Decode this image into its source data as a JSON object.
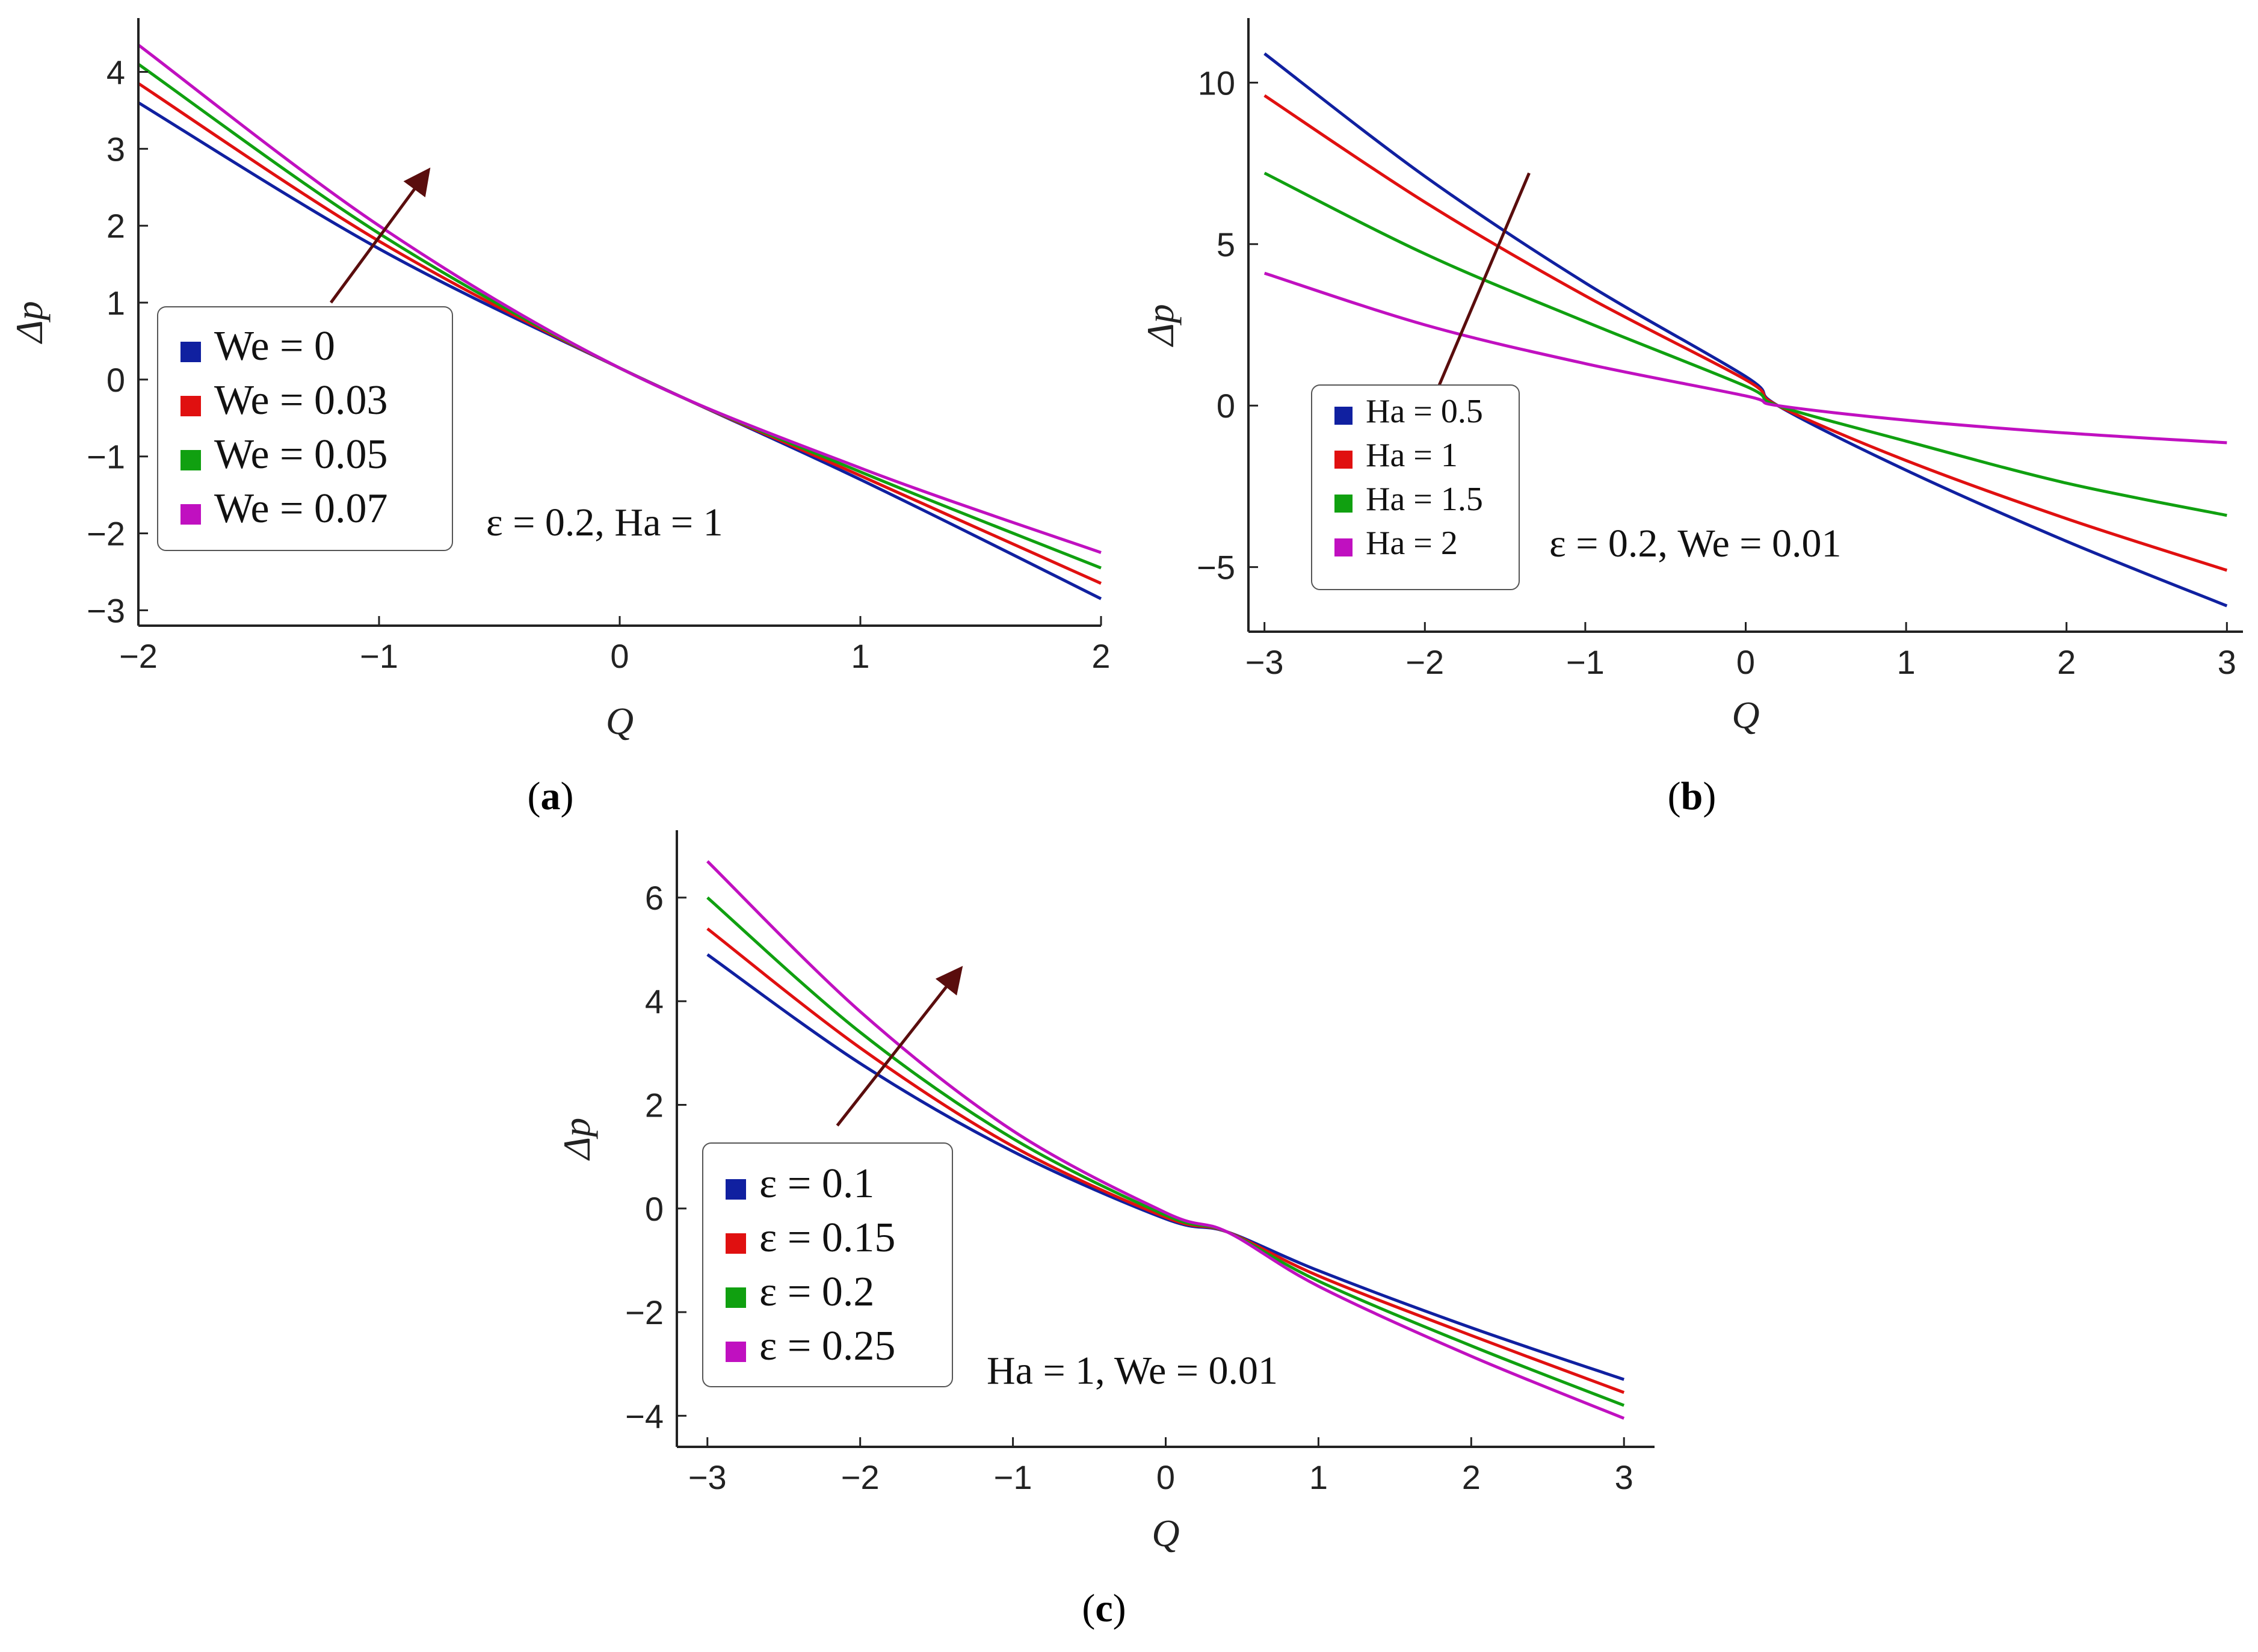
{
  "chart_data": [
    {
      "type": "line",
      "panel_label": "(a)",
      "label_letter": "a",
      "xlabel": "Q",
      "ylabel": "Δp",
      "xlim": [
        -2,
        2
      ],
      "ylim": [
        -3.2,
        4.7
      ],
      "x_ticks": [
        -2,
        -1,
        0,
        1,
        2
      ],
      "y_ticks": [
        -3,
        -2,
        -1,
        0,
        1,
        2,
        3,
        4
      ],
      "x_tick_labels": [
        "−2",
        "−1",
        "0",
        "1",
        "2"
      ],
      "y_tick_labels": [
        "−3",
        "−2",
        "−1",
        "0",
        "1",
        "2",
        "3",
        "4"
      ],
      "legend_position": "left",
      "annotation": "ε = 0.2, Ha = 1",
      "arrow": {
        "from": [
          -1.2,
          1.0
        ],
        "to": [
          -0.8,
          2.7
        ],
        "meaning": "increasing We"
      },
      "series": [
        {
          "name": "We = 0",
          "color": "#1020a0",
          "x": [
            -2,
            -1,
            0,
            1,
            2
          ],
          "y": [
            3.6,
            1.7,
            0.15,
            -1.3,
            -2.85
          ]
        },
        {
          "name": "We = 0.03",
          "color": "#e01010",
          "x": [
            -2,
            -1,
            0,
            1,
            2
          ],
          "y": [
            3.85,
            1.8,
            0.15,
            -1.25,
            -2.65
          ]
        },
        {
          "name": "We = 0.05",
          "color": "#10a010",
          "x": [
            -2,
            -1,
            0,
            1,
            2
          ],
          "y": [
            4.1,
            1.9,
            0.15,
            -1.2,
            -2.45
          ]
        },
        {
          "name": "We = 0.07",
          "color": "#c010c0",
          "x": [
            -2,
            -1,
            0,
            1,
            2
          ],
          "y": [
            4.35,
            2.0,
            0.15,
            -1.15,
            -2.25
          ]
        }
      ]
    },
    {
      "type": "line",
      "panel_label": "(b)",
      "label_letter": "b",
      "xlabel": "Q",
      "ylabel": "Δp",
      "xlim": [
        -3.1,
        3.1
      ],
      "ylim": [
        -7,
        12
      ],
      "x_ticks": [
        -3,
        -2,
        -1,
        0,
        1,
        2,
        3
      ],
      "y_ticks": [
        -5,
        0,
        5,
        10
      ],
      "x_tick_labels": [
        "−3",
        "−2",
        "−1",
        "0",
        "1",
        "2",
        "3"
      ],
      "y_tick_labels": [
        "−5",
        "0",
        "5",
        "10"
      ],
      "legend_position": "bottom-left",
      "annotation": "ε = 0.2, We = 0.01",
      "arrow": {
        "from": [
          -1.35,
          7.2
        ],
        "to": [
          -2.05,
          -1.0
        ],
        "meaning": "increasing Ha"
      },
      "series": [
        {
          "name": "Ha = 0.5",
          "color": "#1020a0",
          "x": [
            -3,
            -2,
            -1,
            0,
            0.2,
            1,
            2,
            3
          ],
          "y": [
            10.9,
            7.1,
            3.8,
            0.9,
            0.0,
            -2.0,
            -4.2,
            -6.2
          ]
        },
        {
          "name": "Ha = 1",
          "color": "#e01010",
          "x": [
            -3,
            -2,
            -1,
            0,
            0.2,
            1,
            2,
            3
          ],
          "y": [
            9.6,
            6.3,
            3.4,
            0.8,
            0.0,
            -1.7,
            -3.5,
            -5.1
          ]
        },
        {
          "name": "Ha = 1.5",
          "color": "#10a010",
          "x": [
            -3,
            -2,
            -1,
            0,
            0.2,
            1,
            2,
            3
          ],
          "y": [
            7.2,
            4.7,
            2.6,
            0.6,
            0.0,
            -1.1,
            -2.4,
            -3.4
          ]
        },
        {
          "name": "Ha = 2",
          "color": "#c010c0",
          "x": [
            -3,
            -2,
            -1,
            0,
            0.2,
            1,
            2,
            3
          ],
          "y": [
            4.1,
            2.5,
            1.3,
            0.3,
            0.0,
            -0.45,
            -0.85,
            -1.15
          ]
        }
      ]
    },
    {
      "type": "line",
      "panel_label": "(c)",
      "label_letter": "c",
      "xlabel": "Q",
      "ylabel": "Δp",
      "xlim": [
        -3.2,
        3.2
      ],
      "ylim": [
        -4.6,
        7.3
      ],
      "x_ticks": [
        -3,
        -2,
        -1,
        0,
        1,
        2,
        3
      ],
      "y_ticks": [
        -4,
        -2,
        0,
        2,
        4,
        6
      ],
      "x_tick_labels": [
        "−3",
        "−2",
        "−1",
        "0",
        "1",
        "2",
        "3"
      ],
      "y_tick_labels": [
        "−4",
        "−2",
        "0",
        "2",
        "4",
        "6"
      ],
      "legend_position": "left",
      "annotation": "Ha = 1, We = 0.01",
      "arrow": {
        "from": [
          -2.15,
          1.6
        ],
        "to": [
          -1.35,
          4.6
        ],
        "meaning": "increasing ε"
      },
      "series": [
        {
          "name": "ε = 0.1",
          "color": "#1020a0",
          "x": [
            -3,
            -2,
            -1,
            0,
            0.4,
            1,
            2,
            3
          ],
          "y": [
            4.9,
            2.8,
            1.1,
            -0.2,
            -0.45,
            -1.2,
            -2.3,
            -3.3
          ]
        },
        {
          "name": "ε = 0.15",
          "color": "#e01010",
          "x": [
            -3,
            -2,
            -1,
            0,
            0.4,
            1,
            2,
            3
          ],
          "y": [
            5.4,
            3.1,
            1.2,
            -0.17,
            -0.45,
            -1.3,
            -2.45,
            -3.55
          ]
        },
        {
          "name": "ε = 0.2",
          "color": "#10a010",
          "x": [
            -3,
            -2,
            -1,
            0,
            0.4,
            1,
            2,
            3
          ],
          "y": [
            6.0,
            3.4,
            1.35,
            -0.13,
            -0.45,
            -1.4,
            -2.65,
            -3.8
          ]
        },
        {
          "name": "ε = 0.25",
          "color": "#c010c0",
          "x": [
            -3,
            -2,
            -1,
            0,
            0.4,
            1,
            2,
            3
          ],
          "y": [
            6.7,
            3.8,
            1.5,
            -0.08,
            -0.45,
            -1.5,
            -2.85,
            -4.05
          ]
        }
      ]
    }
  ],
  "colors": {
    "axis": "#222222",
    "arrow": "#5a0d0d",
    "legend_border": "#555555"
  }
}
